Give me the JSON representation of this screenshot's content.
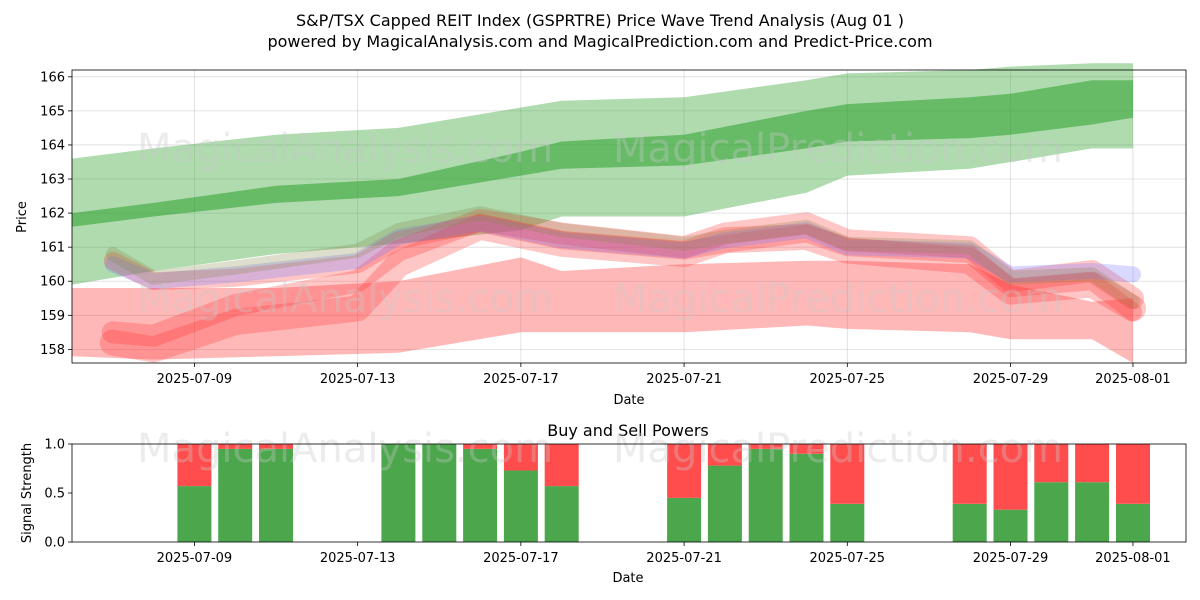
{
  "figure": {
    "title_line1": "S&P/TSX Capped REIT Index (GSPRTRE) Price Wave Trend Analysis (Aug 01 )",
    "title_line2": "powered by MagicalAnalysis.com and MagicalPrediction.com and Predict-Price.com",
    "watermark_left": "MagicalAnalysis.com",
    "watermark_right": "MagicalPrediction.com"
  },
  "chart_data": [
    {
      "type": "area",
      "xlabel": "Date",
      "ylabel": "Price",
      "ylim": [
        157.6,
        166.2
      ],
      "xlim": [
        "2025-07-06",
        "2025-08-02"
      ],
      "yticks": [
        158,
        159,
        160,
        161,
        162,
        163,
        164,
        165,
        166
      ],
      "xticks": [
        "2025-07-09",
        "2025-07-13",
        "2025-07-17",
        "2025-07-21",
        "2025-07-25",
        "2025-07-29",
        "2025-08-01"
      ],
      "grid": true,
      "colors": {
        "green": "#2ca02c",
        "red": "#ff3333",
        "blue": "#7777ff",
        "olive": "#8a8a4a"
      },
      "green_band_outer": {
        "x": [
          "2025-07-06",
          "2025-07-08",
          "2025-07-11",
          "2025-07-14",
          "2025-07-17",
          "2025-07-18",
          "2025-07-21",
          "2025-07-24",
          "2025-07-25",
          "2025-07-28",
          "2025-07-29",
          "2025-07-31",
          "2025-08-01"
        ],
        "upper": [
          163.6,
          163.9,
          164.3,
          164.5,
          165.1,
          165.3,
          165.4,
          165.9,
          166.1,
          166.2,
          166.3,
          166.4,
          166.4
        ],
        "lower": [
          159.9,
          160.3,
          160.8,
          161.1,
          161.5,
          161.9,
          161.9,
          162.6,
          163.1,
          163.3,
          163.5,
          163.9,
          163.9
        ]
      },
      "green_band_inner": {
        "x": [
          "2025-07-06",
          "2025-07-08",
          "2025-07-11",
          "2025-07-14",
          "2025-07-17",
          "2025-07-18",
          "2025-07-21",
          "2025-07-24",
          "2025-07-25",
          "2025-07-28",
          "2025-07-29",
          "2025-07-31",
          "2025-08-01"
        ],
        "upper": [
          162.0,
          162.3,
          162.8,
          163.0,
          163.8,
          164.1,
          164.3,
          165.0,
          165.2,
          165.4,
          165.5,
          165.9,
          165.9
        ],
        "lower": [
          161.6,
          161.9,
          162.3,
          162.5,
          163.1,
          163.3,
          163.4,
          163.9,
          164.1,
          164.2,
          164.3,
          164.6,
          164.8
        ]
      },
      "red_band_low": {
        "x": [
          "2025-07-06",
          "2025-07-08",
          "2025-07-11",
          "2025-07-14",
          "2025-07-17",
          "2025-07-18",
          "2025-07-21",
          "2025-07-24",
          "2025-07-25",
          "2025-07-28",
          "2025-07-29",
          "2025-07-31",
          "2025-08-01"
        ],
        "upper": [
          159.8,
          159.8,
          159.8,
          160.0,
          160.7,
          160.3,
          160.5,
          160.6,
          160.6,
          160.5,
          159.9,
          159.4,
          159.5
        ],
        "lower": [
          157.8,
          157.7,
          157.8,
          157.9,
          158.5,
          158.5,
          158.5,
          158.7,
          158.6,
          158.5,
          158.3,
          158.3,
          157.6
        ]
      },
      "price_waves": [
        {
          "color": "red",
          "x": [
            "2025-07-07",
            "2025-07-08",
            "2025-07-10",
            "2025-07-13",
            "2025-07-14",
            "2025-07-16",
            "2025-07-18",
            "2025-07-21",
            "2025-07-22",
            "2025-07-24",
            "2025-07-25",
            "2025-07-28",
            "2025-07-29",
            "2025-07-31",
            "2025-08-01"
          ],
          "y": [
            158.2,
            158.0,
            158.8,
            159.2,
            160.5,
            161.6,
            161.1,
            160.8,
            161.2,
            161.3,
            160.9,
            160.6,
            159.7,
            159.9,
            159.2
          ]
        },
        {
          "color": "red",
          "x": [
            "2025-07-07",
            "2025-07-08",
            "2025-07-10",
            "2025-07-13",
            "2025-07-14",
            "2025-07-16",
            "2025-07-18",
            "2025-07-21",
            "2025-07-22",
            "2025-07-24",
            "2025-07-25",
            "2025-07-28",
            "2025-07-29",
            "2025-07-31",
            "2025-08-01"
          ],
          "y": [
            158.5,
            158.4,
            159.3,
            160.0,
            160.9,
            161.8,
            161.4,
            161.0,
            161.4,
            161.7,
            161.2,
            161.0,
            160.0,
            160.3,
            159.5
          ]
        },
        {
          "color": "red",
          "x": [
            "2025-07-07",
            "2025-07-08",
            "2025-07-10",
            "2025-07-13",
            "2025-07-14",
            "2025-07-16",
            "2025-07-18",
            "2025-07-21",
            "2025-07-22",
            "2025-07-24",
            "2025-07-25",
            "2025-07-28",
            "2025-07-29",
            "2025-07-31",
            "2025-08-01"
          ],
          "y": [
            160.6,
            160.0,
            160.1,
            160.5,
            161.2,
            161.7,
            161.2,
            160.9,
            161.1,
            161.4,
            161.0,
            160.8,
            159.8,
            160.0,
            159.1
          ]
        },
        {
          "color": "blue",
          "x": [
            "2025-07-07",
            "2025-07-08",
            "2025-07-10",
            "2025-07-13",
            "2025-07-14",
            "2025-07-16",
            "2025-07-18",
            "2025-07-21",
            "2025-07-22",
            "2025-07-24",
            "2025-07-25",
            "2025-07-28",
            "2025-07-29",
            "2025-07-31",
            "2025-08-01"
          ],
          "y": [
            160.5,
            160.0,
            160.2,
            160.6,
            161.3,
            161.7,
            161.2,
            160.9,
            161.2,
            161.5,
            161.0,
            160.9,
            160.2,
            160.3,
            160.2
          ]
        },
        {
          "color": "olive",
          "x": [
            "2025-07-07",
            "2025-07-08",
            "2025-07-10",
            "2025-07-13",
            "2025-07-14",
            "2025-07-16",
            "2025-07-18",
            "2025-07-21",
            "2025-07-22",
            "2025-07-24",
            "2025-07-25",
            "2025-07-28",
            "2025-07-29",
            "2025-07-31",
            "2025-08-01"
          ],
          "y": [
            160.8,
            160.1,
            160.4,
            160.9,
            161.5,
            162.0,
            161.5,
            161.1,
            161.3,
            161.6,
            161.1,
            161.0,
            160.1,
            160.2,
            159.4
          ]
        }
      ]
    },
    {
      "type": "bar",
      "title": "Buy and Sell Powers",
      "xlabel": "Date",
      "ylabel": "Signal Strength",
      "ylim": [
        0,
        1
      ],
      "yticks": [
        0.0,
        0.5,
        1.0
      ],
      "xticks": [
        "2025-07-09",
        "2025-07-13",
        "2025-07-17",
        "2025-07-21",
        "2025-07-25",
        "2025-07-29",
        "2025-08-01"
      ],
      "colors": {
        "buy": "#4ca64c",
        "sell": "#ff4d4d"
      },
      "categories": [
        "2025-07-09",
        "2025-07-10",
        "2025-07-11",
        "2025-07-14",
        "2025-07-15",
        "2025-07-16",
        "2025-07-17",
        "2025-07-18",
        "2025-07-21",
        "2025-07-22",
        "2025-07-23",
        "2025-07-24",
        "2025-07-25",
        "2025-07-28",
        "2025-07-29",
        "2025-07-30",
        "2025-07-31",
        "2025-08-01"
      ],
      "series": [
        {
          "values": [
            0.57,
            0.95,
            0.95,
            1.0,
            1.0,
            0.95,
            0.73,
            0.57,
            0.45,
            0.78,
            0.95,
            0.9,
            0.39,
            0.39,
            0.33,
            0.61,
            0.61,
            0.39
          ]
        },
        {
          "values": [
            0.43,
            0.05,
            0.05,
            0.0,
            0.0,
            0.05,
            0.27,
            0.43,
            0.55,
            0.22,
            0.05,
            0.1,
            0.61,
            0.61,
            0.67,
            0.39,
            0.39,
            0.61
          ]
        }
      ]
    }
  ]
}
